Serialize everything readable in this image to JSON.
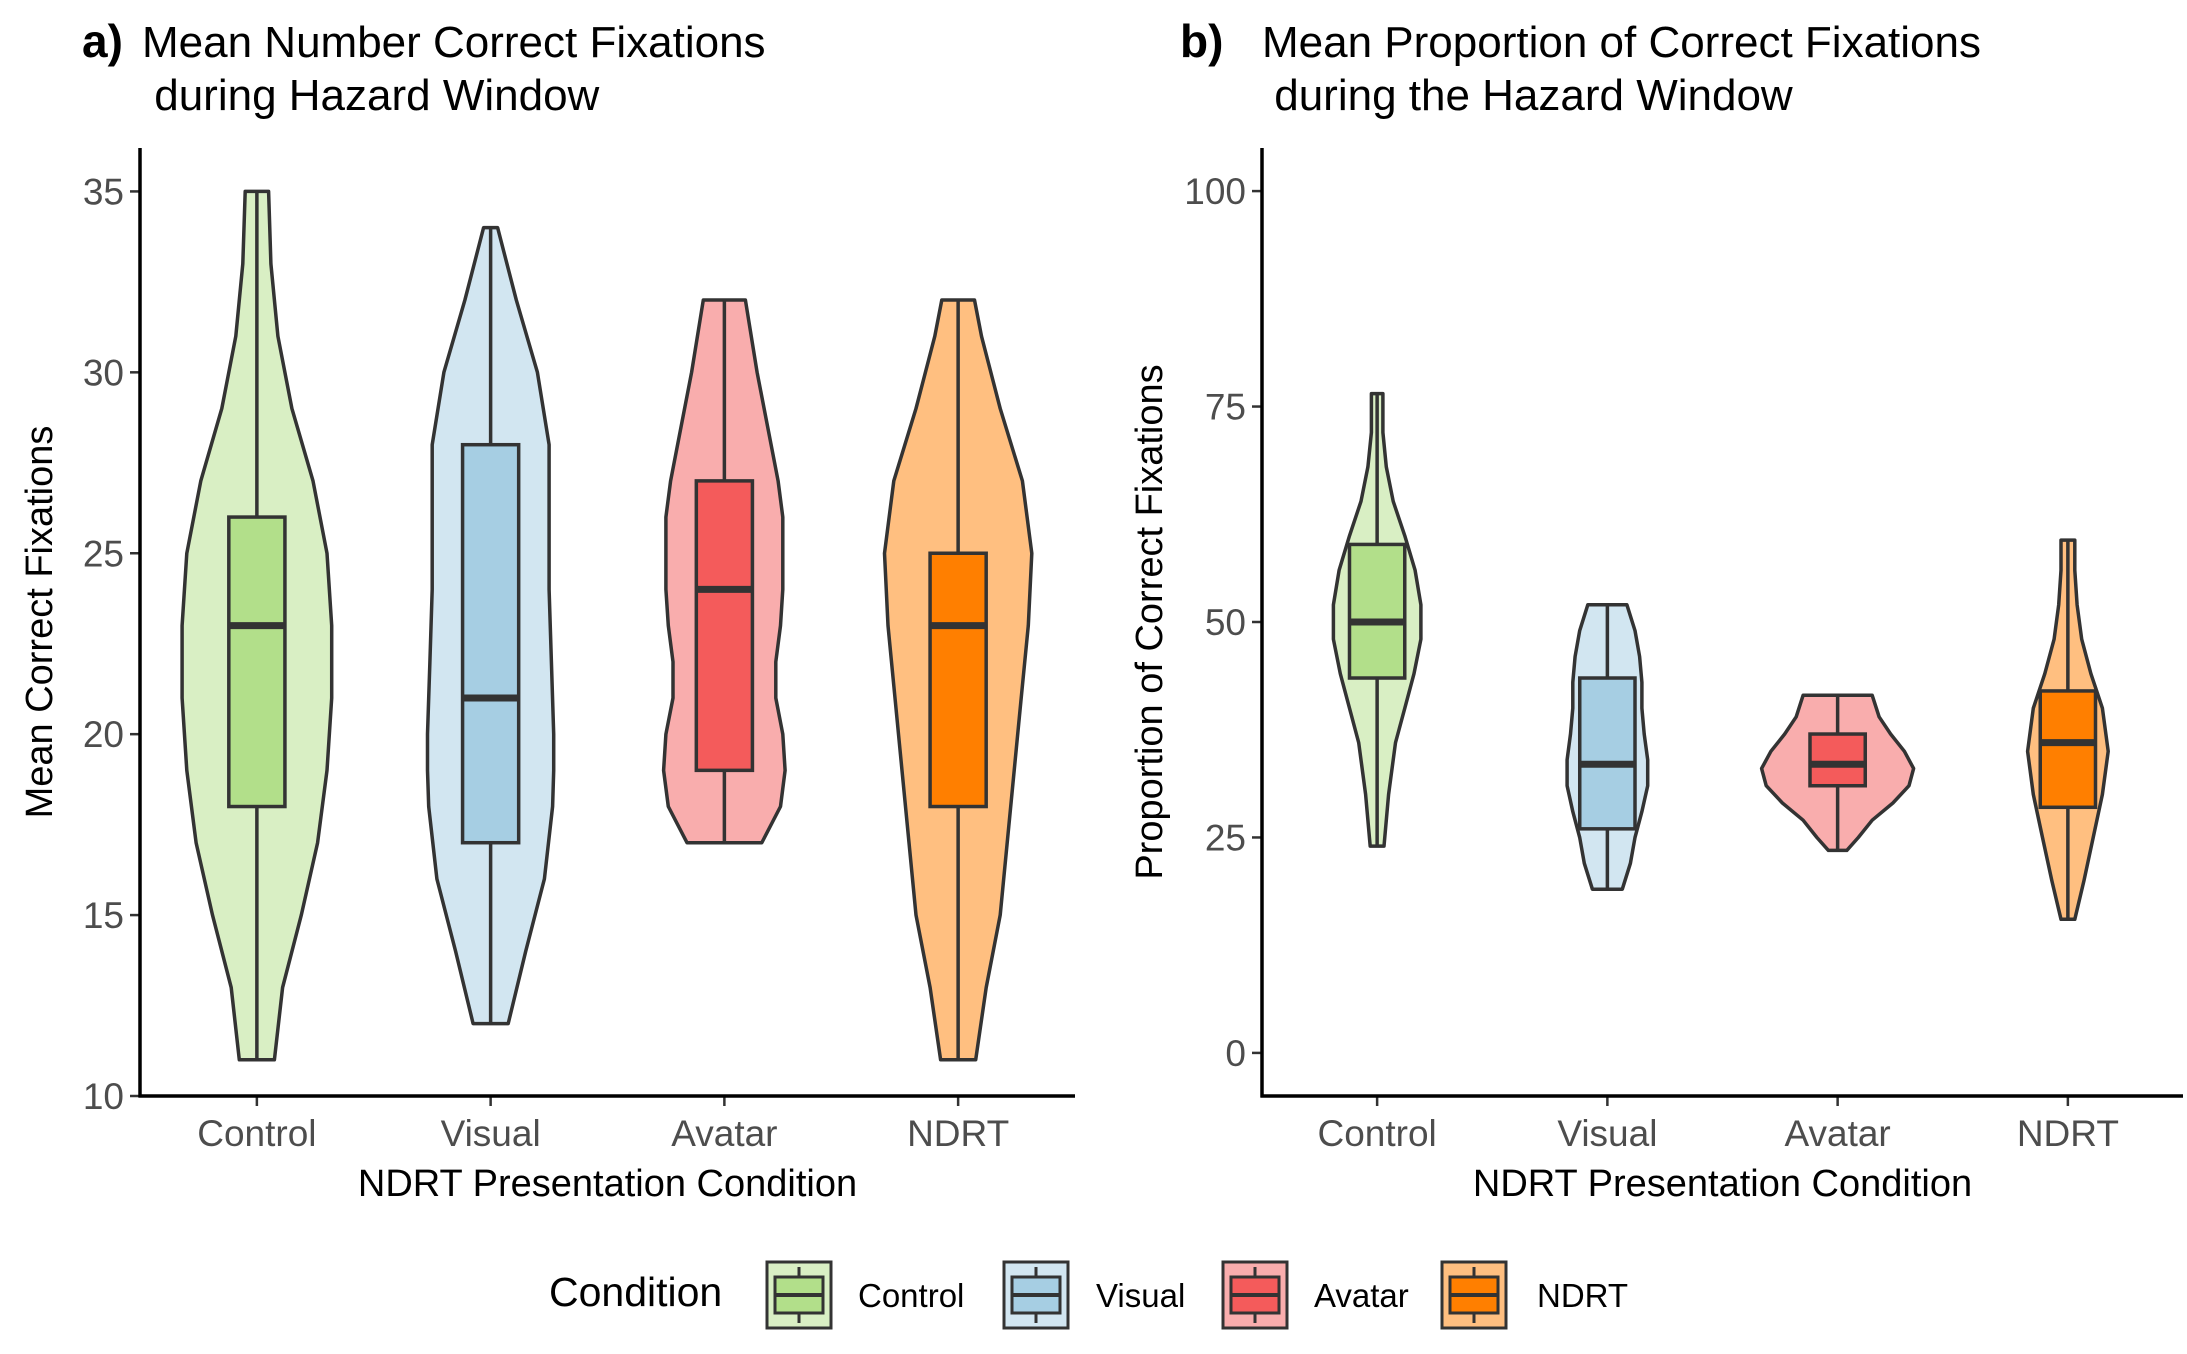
{
  "figure": {
    "legend": {
      "title": "Condition",
      "items": [
        "Control",
        "Visual",
        "Avatar",
        "NDRT"
      ]
    }
  },
  "colors": {
    "Control": {
      "box": "#b2df8a",
      "violin": "#d9efc4"
    },
    "Visual": {
      "box": "#a6cee3",
      "violin": "#d2e6f1"
    },
    "Avatar": {
      "box": "#f45b5b",
      "violin": "#f9adad"
    },
    "NDRT": {
      "box": "#ff7f00",
      "violin": "#ffbf80"
    },
    "outline": "#333333"
  },
  "chart_data": [
    {
      "type": "violin+boxplot",
      "tag": "a)",
      "title": "Mean Number Correct Fixations\n during Hazard Window",
      "xlabel": "NDRT Presentation Condition",
      "ylabel": "Mean Correct Fixations",
      "ylim": [
        10,
        36.2
      ],
      "yticks": [
        10,
        15,
        20,
        25,
        30,
        35
      ],
      "categories": [
        "Control",
        "Visual",
        "Avatar",
        "NDRT"
      ],
      "box_stats": [
        {
          "name": "Control",
          "min": 11,
          "q1": 18,
          "median": 23,
          "q3": 26,
          "max": 35
        },
        {
          "name": "Visual",
          "min": 12,
          "q1": 17,
          "median": 21,
          "q3": 28,
          "max": 34
        },
        {
          "name": "Avatar",
          "min": 17,
          "q1": 19,
          "median": 24,
          "q3": 27,
          "max": 32
        },
        {
          "name": "NDRT",
          "min": 11,
          "q1": 18,
          "median": 23,
          "q3": 25,
          "max": 32
        }
      ],
      "violin_density": [
        {
          "name": "Control",
          "y": [
            11,
            13,
            15,
            17,
            19,
            21,
            23,
            25,
            27,
            29,
            31,
            33,
            35
          ],
          "half_width": [
            0.15,
            0.22,
            0.38,
            0.52,
            0.6,
            0.64,
            0.64,
            0.6,
            0.48,
            0.3,
            0.18,
            0.12,
            0.1
          ]
        },
        {
          "name": "Visual",
          "y": [
            12,
            14,
            16,
            18,
            19,
            20,
            22,
            24,
            26,
            28,
            30,
            32,
            34
          ],
          "half_width": [
            0.15,
            0.3,
            0.46,
            0.53,
            0.54,
            0.54,
            0.52,
            0.5,
            0.5,
            0.5,
            0.4,
            0.22,
            0.06
          ]
        },
        {
          "name": "Avatar",
          "y": [
            17,
            18,
            19,
            20,
            21,
            22,
            23,
            24,
            25,
            26,
            27,
            28,
            30,
            32
          ],
          "half_width": [
            0.32,
            0.48,
            0.52,
            0.5,
            0.44,
            0.44,
            0.48,
            0.5,
            0.5,
            0.5,
            0.46,
            0.4,
            0.28,
            0.18
          ]
        },
        {
          "name": "NDRT",
          "y": [
            11,
            13,
            15,
            17,
            19,
            21,
            23,
            25,
            27,
            29,
            31,
            32
          ],
          "half_width": [
            0.15,
            0.24,
            0.36,
            0.42,
            0.48,
            0.54,
            0.6,
            0.63,
            0.55,
            0.36,
            0.2,
            0.14
          ]
        }
      ]
    },
    {
      "type": "violin+boxplot",
      "tag": "b)",
      "title": "Mean Proportion of Correct Fixations\n during the Hazard Window",
      "xlabel": "NDRT Presentation Condition",
      "ylabel": "Proportion of Correct Fixations",
      "ylim": [
        -5,
        105
      ],
      "yticks": [
        0,
        25,
        50,
        75,
        100
      ],
      "categories": [
        "Control",
        "Visual",
        "Avatar",
        "NDRT"
      ],
      "box_stats": [
        {
          "name": "Control",
          "min": 24,
          "q1": 43.5,
          "median": 50,
          "q3": 59,
          "max": 76.5
        },
        {
          "name": "Visual",
          "min": 19,
          "q1": 26,
          "median": 33.5,
          "q3": 43.5,
          "max": 52
        },
        {
          "name": "Avatar",
          "min": 23.5,
          "q1": 31,
          "median": 33.5,
          "q3": 37,
          "max": 41.5
        },
        {
          "name": "NDRT",
          "min": 15.5,
          "q1": 28.5,
          "median": 36,
          "q3": 42,
          "max": 59.5
        }
      ],
      "violin_density": [
        {
          "name": "Control",
          "y": [
            24,
            30,
            36,
            40,
            44,
            48,
            52,
            56,
            60,
            64,
            68,
            72,
            76.5
          ],
          "half_width": [
            0.06,
            0.1,
            0.16,
            0.24,
            0.32,
            0.38,
            0.38,
            0.33,
            0.24,
            0.14,
            0.08,
            0.05,
            0.05
          ]
        },
        {
          "name": "Visual",
          "y": [
            19,
            22,
            25,
            28,
            31,
            34,
            37,
            40,
            43,
            46,
            49,
            52
          ],
          "half_width": [
            0.13,
            0.2,
            0.24,
            0.3,
            0.35,
            0.35,
            0.32,
            0.3,
            0.3,
            0.28,
            0.24,
            0.17
          ]
        },
        {
          "name": "Avatar",
          "y": [
            23.5,
            25,
            27,
            29,
            31,
            33,
            35,
            37,
            39,
            41.5
          ],
          "half_width": [
            0.08,
            0.18,
            0.3,
            0.48,
            0.62,
            0.66,
            0.58,
            0.46,
            0.36,
            0.3
          ]
        },
        {
          "name": "NDRT",
          "y": [
            15.5,
            20,
            25,
            30,
            35,
            40,
            44,
            48,
            52,
            56,
            59.5
          ],
          "half_width": [
            0.06,
            0.14,
            0.22,
            0.3,
            0.35,
            0.3,
            0.2,
            0.12,
            0.08,
            0.06,
            0.06
          ]
        }
      ]
    }
  ]
}
